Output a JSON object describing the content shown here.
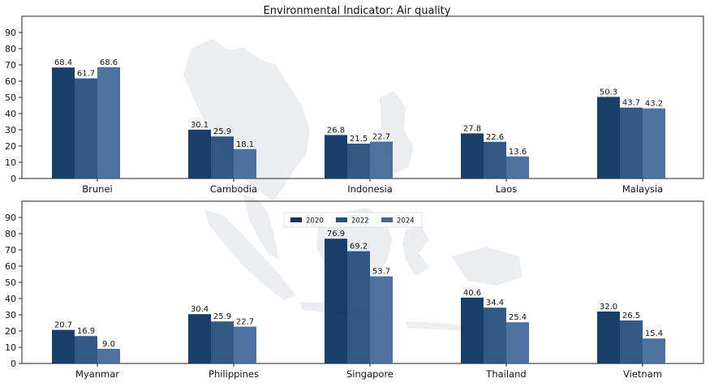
{
  "chart_data": {
    "type": "bar",
    "title": "Environmental Indicator: Air quality",
    "xlabel": "",
    "ylabel": "",
    "ylim": [
      0,
      100
    ],
    "yticks": [
      0,
      10,
      20,
      30,
      40,
      50,
      60,
      70,
      80,
      90
    ],
    "grid": false,
    "legend_position": "top-center (lower panel)",
    "legend": [
      "2020",
      "2022",
      "2024"
    ],
    "colors": [
      "#0f3563",
      "#274f7d",
      "#44699a"
    ],
    "background_image": "southeast-asia-map-silhouette",
    "panels": [
      {
        "categories": [
          "Brunei",
          "Cambodia",
          "Indonesia",
          "Laos",
          "Malaysia"
        ],
        "series": [
          {
            "name": "2020",
            "values": [
              68.4,
              30.1,
              26.8,
              27.8,
              50.3
            ]
          },
          {
            "name": "2022",
            "values": [
              61.7,
              25.9,
              21.5,
              22.6,
              43.7
            ]
          },
          {
            "name": "2024",
            "values": [
              68.6,
              18.1,
              22.7,
              13.6,
              43.2
            ]
          }
        ]
      },
      {
        "categories": [
          "Myanmar",
          "Philippines",
          "Singapore",
          "Thailand",
          "Vietnam"
        ],
        "series": [
          {
            "name": "2020",
            "values": [
              20.7,
              30.4,
              76.9,
              40.6,
              32.0
            ]
          },
          {
            "name": "2022",
            "values": [
              16.9,
              25.9,
              69.2,
              34.4,
              26.5
            ]
          },
          {
            "name": "2024",
            "values": [
              9.0,
              22.7,
              53.7,
              25.4,
              15.4
            ]
          }
        ]
      }
    ]
  }
}
